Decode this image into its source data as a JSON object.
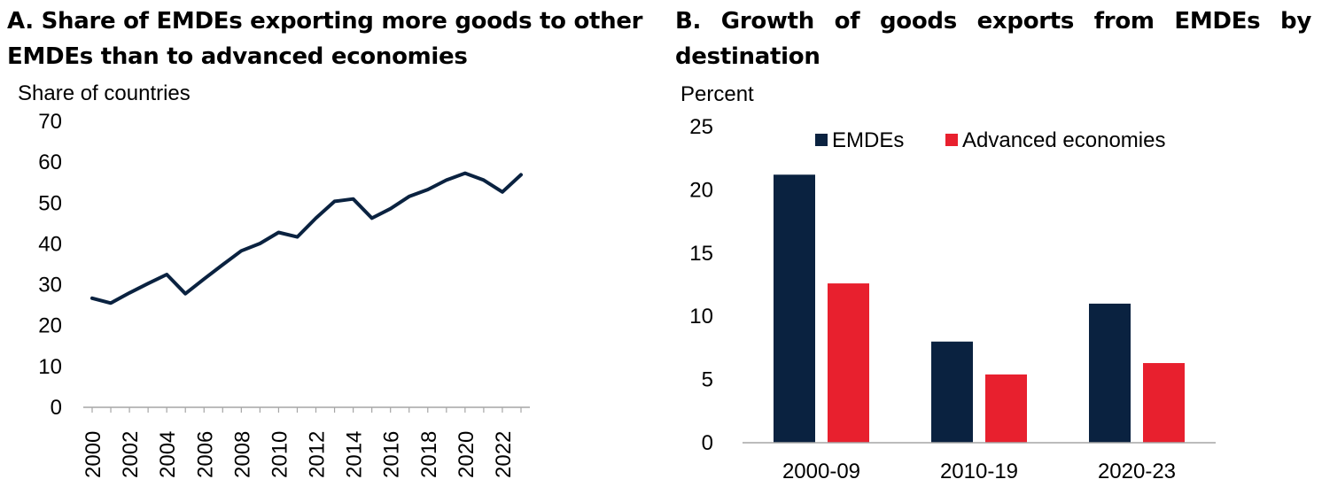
{
  "chart_data": [
    {
      "type": "line",
      "title": "A. Share of EMDEs exporting more goods to other EMDEs than to advanced economies",
      "ylabel": "Share of countries",
      "xlabel": "",
      "ylim": [
        0,
        70
      ],
      "yticks": [
        0,
        10,
        20,
        30,
        40,
        50,
        60,
        70
      ],
      "xtick_labels": [
        "2000",
        "2002",
        "2004",
        "2006",
        "2008",
        "2010",
        "2012",
        "2014",
        "2016",
        "2018",
        "2020",
        "2022"
      ],
      "color": "#0a2240",
      "x": [
        2000,
        2001,
        2002,
        2003,
        2004,
        2005,
        2006,
        2007,
        2008,
        2009,
        2010,
        2011,
        2012,
        2013,
        2014,
        2015,
        2016,
        2017,
        2018,
        2019,
        2020,
        2021,
        2022,
        2023
      ],
      "values": [
        26.7,
        25.5,
        28,
        30.3,
        32.5,
        27.8,
        31.4,
        34.9,
        38.3,
        40.1,
        42.8,
        41.7,
        46.3,
        50.4,
        51,
        46.3,
        48.6,
        51.6,
        53.3,
        55.6,
        57.3,
        55.6,
        52.7,
        56.9
      ]
    },
    {
      "type": "bar",
      "title": "B. Growth of goods exports from EMDEs by destination",
      "ylabel": "Percent",
      "xlabel": "",
      "ylim": [
        0,
        25
      ],
      "yticks": [
        0,
        5,
        10,
        15,
        20,
        25
      ],
      "categories": [
        "2000-09",
        "2010-19",
        "2020-23"
      ],
      "legend_position": "top",
      "series": [
        {
          "name": "EMDEs",
          "color": "#0a2240",
          "values": [
            21.2,
            8.0,
            11.0
          ]
        },
        {
          "name": "Advanced economies",
          "color": "#e8202e",
          "values": [
            12.6,
            5.4,
            6.3
          ]
        }
      ]
    }
  ]
}
